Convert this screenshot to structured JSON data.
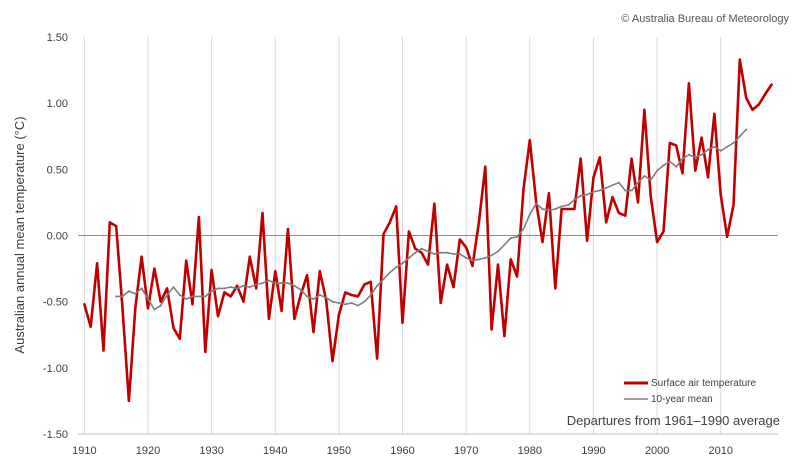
{
  "colors": {
    "surface": "#c00000",
    "mean": "#7f7f7f",
    "zero_line": "#5b9bd5",
    "grid": "#d9d9d9",
    "axis": "#bfbfbf"
  },
  "credit": "© Australia Bureau of Meteorology",
  "chart_data": {
    "type": "line",
    "ylabel": "Australian annual mean temperature (°C)",
    "annotation": "Departures from 1961–1990 average",
    "xlim": [
      1909,
      2019
    ],
    "ylim": [
      -1.5,
      1.5
    ],
    "grid": "vertical",
    "legend": "bottom-right",
    "x_ticks": [
      1910,
      1920,
      1930,
      1940,
      1950,
      1960,
      1970,
      1980,
      1990,
      2000,
      2010
    ],
    "y_ticks": [
      1.5,
      1.0,
      0.5,
      0.0,
      -0.5,
      -1.0,
      -1.5
    ],
    "y_tick_labels": [
      "1.50",
      "1.00",
      "0.50",
      "0.00",
      "-0.50",
      "-1.00",
      "-1.50"
    ],
    "series": [
      {
        "name": "Surface air temperature",
        "x": [
          1910,
          1911,
          1912,
          1913,
          1914,
          1915,
          1916,
          1917,
          1918,
          1919,
          1920,
          1921,
          1922,
          1923,
          1924,
          1925,
          1926,
          1927,
          1928,
          1929,
          1930,
          1931,
          1932,
          1933,
          1934,
          1935,
          1936,
          1937,
          1938,
          1939,
          1940,
          1941,
          1942,
          1943,
          1944,
          1945,
          1946,
          1947,
          1948,
          1949,
          1950,
          1951,
          1952,
          1953,
          1954,
          1955,
          1956,
          1957,
          1958,
          1959,
          1960,
          1961,
          1962,
          1963,
          1964,
          1965,
          1966,
          1967,
          1968,
          1969,
          1970,
          1971,
          1972,
          1973,
          1974,
          1975,
          1976,
          1977,
          1978,
          1979,
          1980,
          1981,
          1982,
          1983,
          1984,
          1985,
          1986,
          1987,
          1988,
          1989,
          1990,
          1991,
          1992,
          1993,
          1994,
          1995,
          1996,
          1997,
          1998,
          1999,
          2000,
          2001,
          2002,
          2003,
          2004,
          2005,
          2006,
          2007,
          2008,
          2009,
          2010,
          2011,
          2012,
          2013,
          2014,
          2015,
          2016,
          2017,
          2018
        ],
        "values": [
          -0.52,
          -0.69,
          -0.21,
          -0.87,
          0.1,
          0.07,
          -0.55,
          -1.25,
          -0.55,
          -0.16,
          -0.55,
          -0.25,
          -0.5,
          -0.4,
          -0.7,
          -0.78,
          -0.19,
          -0.52,
          0.14,
          -0.88,
          -0.26,
          -0.61,
          -0.43,
          -0.46,
          -0.38,
          -0.5,
          -0.16,
          -0.4,
          0.17,
          -0.63,
          -0.27,
          -0.57,
          0.05,
          -0.63,
          -0.45,
          -0.3,
          -0.73,
          -0.27,
          -0.49,
          -0.95,
          -0.6,
          -0.43,
          -0.45,
          -0.46,
          -0.37,
          -0.35,
          -0.93,
          0.01,
          0.1,
          0.22,
          -0.66,
          0.03,
          -0.1,
          -0.13,
          -0.22,
          0.24,
          -0.51,
          -0.22,
          -0.39,
          -0.03,
          -0.09,
          -0.23,
          0.1,
          0.52,
          -0.71,
          -0.22,
          -0.76,
          -0.18,
          -0.31,
          0.35,
          0.72,
          0.25,
          -0.05,
          0.32,
          -0.4,
          0.2,
          0.2,
          0.2,
          0.58,
          -0.04,
          0.44,
          0.59,
          0.1,
          0.29,
          0.17,
          0.15,
          0.58,
          0.25,
          0.95,
          0.3,
          -0.05,
          0.03,
          0.7,
          0.68,
          0.47,
          1.15,
          0.49,
          0.74,
          0.44,
          0.92,
          0.31,
          -0.01,
          0.23,
          1.33,
          1.04,
          0.95,
          0.99,
          1.07,
          1.14
        ]
      },
      {
        "name": "10-year mean",
        "x": [
          1915,
          1916,
          1917,
          1918,
          1919,
          1920,
          1921,
          1922,
          1923,
          1924,
          1925,
          1926,
          1927,
          1928,
          1929,
          1930,
          1931,
          1932,
          1933,
          1934,
          1935,
          1936,
          1937,
          1938,
          1939,
          1940,
          1941,
          1942,
          1943,
          1944,
          1945,
          1946,
          1947,
          1948,
          1949,
          1950,
          1951,
          1952,
          1953,
          1954,
          1955,
          1956,
          1957,
          1958,
          1959,
          1960,
          1961,
          1962,
          1963,
          1964,
          1965,
          1966,
          1967,
          1968,
          1969,
          1970,
          1971,
          1972,
          1973,
          1974,
          1975,
          1976,
          1977,
          1978,
          1979,
          1980,
          1981,
          1982,
          1983,
          1984,
          1985,
          1986,
          1987,
          1988,
          1989,
          1990,
          1991,
          1992,
          1993,
          1994,
          1995,
          1996,
          1997,
          1998,
          1999,
          2000,
          2001,
          2002,
          2003,
          2004,
          2005,
          2006,
          2007,
          2008,
          2009,
          2010,
          2011,
          2012,
          2013,
          2014
        ],
        "values": [
          -0.46,
          -0.46,
          -0.42,
          -0.44,
          -0.4,
          -0.48,
          -0.56,
          -0.53,
          -0.45,
          -0.39,
          -0.45,
          -0.48,
          -0.46,
          -0.46,
          -0.46,
          -0.42,
          -0.4,
          -0.4,
          -0.39,
          -0.4,
          -0.38,
          -0.39,
          -0.37,
          -0.36,
          -0.34,
          -0.36,
          -0.36,
          -0.36,
          -0.38,
          -0.41,
          -0.46,
          -0.48,
          -0.45,
          -0.47,
          -0.5,
          -0.51,
          -0.52,
          -0.51,
          -0.53,
          -0.5,
          -0.45,
          -0.38,
          -0.33,
          -0.28,
          -0.24,
          -0.21,
          -0.17,
          -0.13,
          -0.1,
          -0.12,
          -0.14,
          -0.13,
          -0.13,
          -0.14,
          -0.14,
          -0.17,
          -0.19,
          -0.18,
          -0.17,
          -0.15,
          -0.12,
          -0.07,
          -0.02,
          -0.01,
          0.05,
          0.16,
          0.24,
          0.2,
          0.19,
          0.2,
          0.22,
          0.23,
          0.27,
          0.3,
          0.31,
          0.33,
          0.34,
          0.36,
          0.38,
          0.4,
          0.34,
          0.34,
          0.4,
          0.45,
          0.42,
          0.49,
          0.53,
          0.56,
          0.52,
          0.58,
          0.61,
          0.59,
          0.61,
          0.65,
          0.67,
          0.64,
          0.67,
          0.7,
          0.75,
          0.8
        ]
      }
    ]
  }
}
